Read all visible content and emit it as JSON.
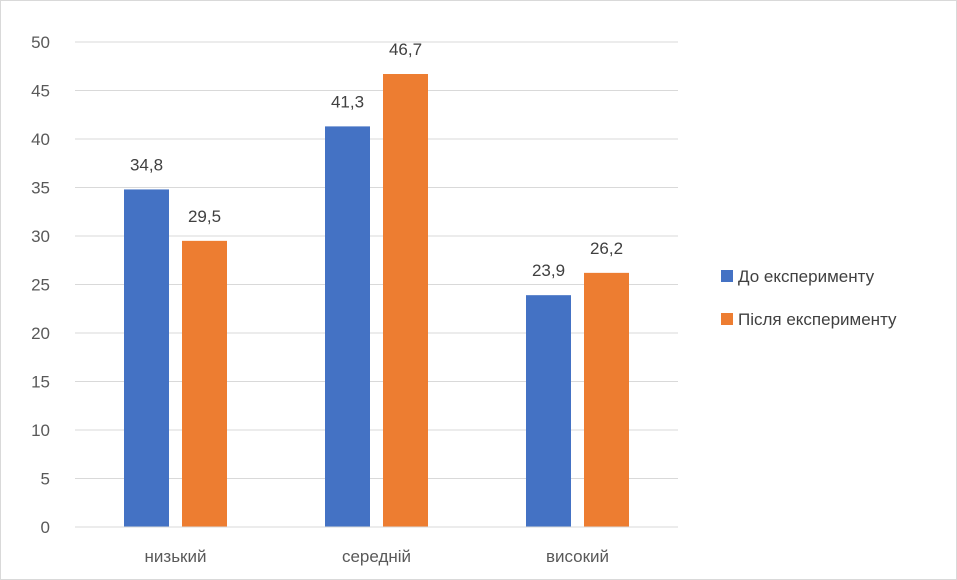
{
  "chart_data": {
    "type": "bar",
    "categories": [
      "низький",
      "середній",
      "високий"
    ],
    "series": [
      {
        "name": "До експерименту",
        "values": [
          34.8,
          41.3,
          23.9
        ],
        "labels": [
          "34,8",
          "41,3",
          "23,9"
        ],
        "color": "#4472c4"
      },
      {
        "name": "Після експерименту",
        "values": [
          29.5,
          46.7,
          26.2
        ],
        "labels": [
          "29,5",
          "46,7",
          "26,2"
        ],
        "color": "#ed7d31"
      }
    ],
    "ylim": [
      0,
      50
    ],
    "yticks": [
      0,
      5,
      10,
      15,
      20,
      25,
      30,
      35,
      40,
      45,
      50
    ],
    "grid": true,
    "legend": "right"
  }
}
